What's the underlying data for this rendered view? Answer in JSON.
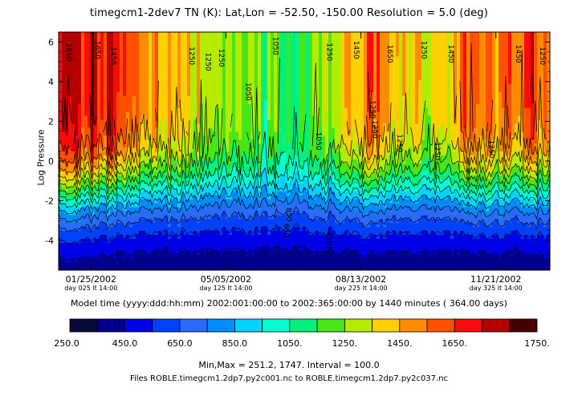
{
  "chart_data": {
    "type": "heatmap",
    "title": "timegcm1-2dev7 TN (K):  Lat,Lon = -52.50, -150.00 Resolution = 5.0 (deg)",
    "ylabel": "Log Pressure",
    "xlabel": "Model time (yyyy:ddd:hh:mm) 2002:001:00:00 to 2002:365:00:00 by   1440 minutes ( 364.00 days)",
    "xlim": [
      1,
      365
    ],
    "ylim": [
      -5.5,
      6.5
    ],
    "y_ticks": [
      -4,
      -2,
      0,
      2,
      4,
      6
    ],
    "y_tick_labels": [
      "-4",
      "-2",
      "0",
      "2",
      "4",
      "6"
    ],
    "x_ticks": [
      {
        "day": 25,
        "date": "01/25/2002",
        "sub": "day 025 lt 14:00"
      },
      {
        "day": 125,
        "date": "05/05/2002",
        "sub": "day 125 lt 14:00"
      },
      {
        "day": 225,
        "date": "08/13/2002",
        "sub": "day 225 lt 14:00"
      },
      {
        "day": 325,
        "date": "11/21/2002",
        "sub": "day 325 lt 14:00"
      }
    ],
    "contour_interval": 100,
    "min": 251.2,
    "max": 1747,
    "contour_labels": [
      "1650",
      "1650",
      "1450",
      "1250",
      "1250",
      "1250",
      "1050",
      "1250",
      "1450",
      "1650",
      "1250",
      "1450",
      "1450",
      "1250",
      "1050",
      "1250",
      "1250",
      "1250",
      "1250",
      "1050",
      "850",
      "650",
      "450",
      "1250"
    ],
    "colorbar": {
      "levels": [
        250,
        350,
        450,
        550,
        650,
        750,
        850,
        950,
        1050,
        1150,
        1250,
        1350,
        1450,
        1550,
        1650,
        1750
      ],
      "colors": [
        "#0a0a3a",
        "#00008c",
        "#0000e6",
        "#0040ff",
        "#2a6bff",
        "#008cff",
        "#00d2ff",
        "#00ffd0",
        "#00f07a",
        "#48e618",
        "#b4eb00",
        "#ffd000",
        "#ff8c00",
        "#ff5000",
        "#ff0a0a",
        "#b40000",
        "#460000"
      ],
      "tick_labels": [
        "250.0",
        "450.0",
        "650.0",
        "850.0",
        "1050.",
        "1250.",
        "1450.",
        "1650.",
        "1750."
      ]
    }
  },
  "footer": {
    "minmax": "Min,Max =      251.2,       1747. Interval =      100.0",
    "files": "Files ROBLE.timegcm1.2dp7.py2c001.nc to ROBLE.timegcm1.2dp7.py2c037.nc"
  },
  "colors": {
    "axis": "#000000",
    "background": "#ffffff"
  }
}
